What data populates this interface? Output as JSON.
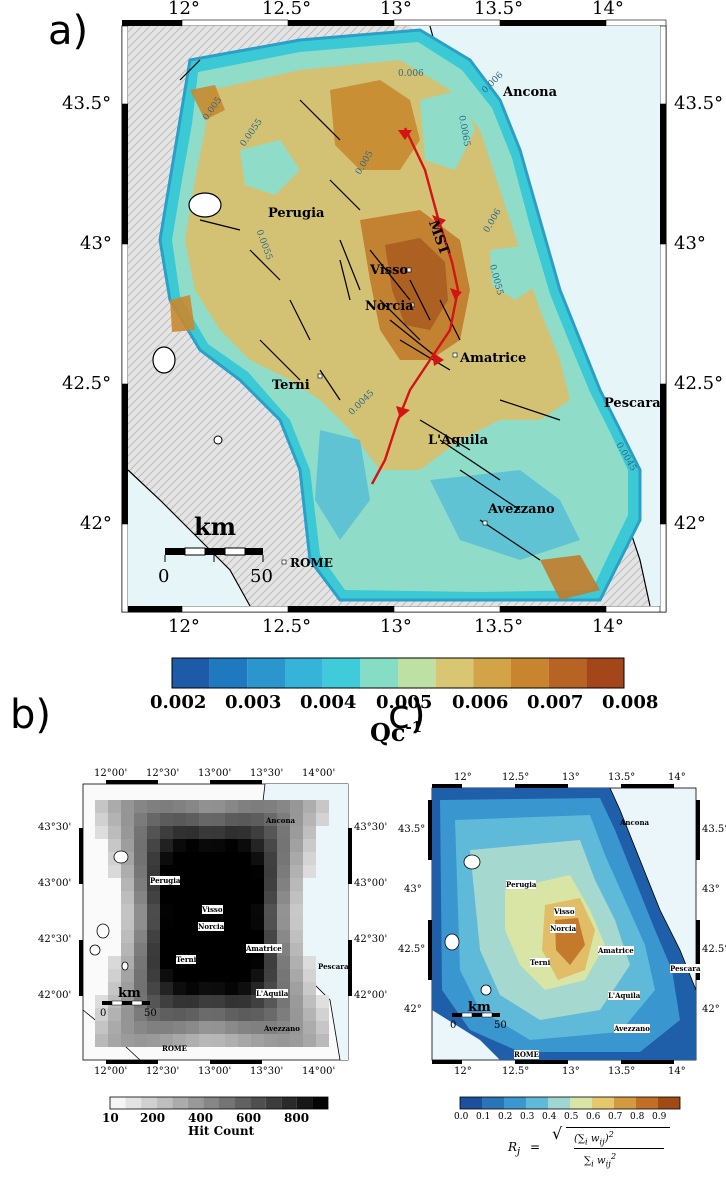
{
  "panel_a": {
    "label": "a)",
    "lon_ticks": [
      "12°",
      "12.5°",
      "13°",
      "13.5°",
      "14°"
    ],
    "lat_ticks": [
      "43.5°",
      "43°",
      "42.5°",
      "42°"
    ],
    "cities": {
      "ancona": "Ancona",
      "perugia": "Perugia",
      "visso": "Visso",
      "norcia": "Norcia",
      "amatrice": "Amatrice",
      "terni": "Terni",
      "pescara": "Pescara",
      "laquila": "L'Aquila",
      "avezzano": "Avezzano",
      "rome": "ROME"
    },
    "fault_label": "MST",
    "scale_unit": "km",
    "scale_min": "0",
    "scale_max": "50",
    "contour_labels": [
      "0.006",
      "0.005",
      "0.0055",
      "0.006",
      "0.005",
      "0.0065",
      "0.0055",
      "0.006",
      "0.0055",
      "0.0045",
      "0.0045"
    ],
    "colorbar": {
      "ticks": [
        "0.002",
        "0.003",
        "0.004",
        "0.005",
        "0.006",
        "0.007",
        "0.008"
      ],
      "title": "Qc",
      "title_sup": "-1",
      "colors": [
        "#1d5aa8",
        "#1f79bf",
        "#2a96cc",
        "#36b3d8",
        "#3fcbd9",
        "#86ddc6",
        "#bfe0a3",
        "#d8c672",
        "#d3a347",
        "#c8842f",
        "#b76323",
        "#a3461a"
      ]
    }
  },
  "panel_b": {
    "label": "b)",
    "lon_ticks": [
      "12°00'",
      "12°30'",
      "13°00'",
      "13°30'",
      "14°00'"
    ],
    "lat_ticks": [
      "43°30'",
      "43°00'",
      "42°30'",
      "42°00'"
    ],
    "cities": {
      "ancona": "Ancona",
      "perugia": "Perugia",
      "visso": "Visso",
      "norcia": "Norcia",
      "amatrice": "Amatrice",
      "terni": "Terni",
      "pescara": "Pescara",
      "laquila": "L'Aquila",
      "avezzano": "Avezzano",
      "rome": "ROME"
    },
    "scale_unit": "km",
    "scale_min": "0",
    "scale_max": "50",
    "colorbar": {
      "ticks": [
        "10",
        "200",
        "400",
        "600",
        "800"
      ],
      "title": "Hit Count"
    }
  },
  "panel_c": {
    "label": "c)",
    "lon_ticks": [
      "12°",
      "12.5°",
      "13°",
      "13.5°",
      "14°"
    ],
    "lat_ticks": [
      "43.5°",
      "43°",
      "42.5°",
      "42°"
    ],
    "cities": {
      "ancona": "Ancona",
      "perugia": "Perugia",
      "visso": "Visso",
      "norcia": "Norcia",
      "amatrice": "Amatrice",
      "terni": "Terni",
      "pescara": "Pescara",
      "laquila": "L'Aquila",
      "avezzano": "Avezzano",
      "rome": "ROME"
    },
    "scale_unit": "km",
    "scale_min": "0",
    "scale_max": "50",
    "colorbar": {
      "ticks": [
        "0.0",
        "0.1",
        "0.2",
        "0.3",
        "0.4",
        "0.5",
        "0.6",
        "0.7",
        "0.8",
        "0.9"
      ],
      "colors": [
        "#1c4f9c",
        "#2a74b8",
        "#3a98cf",
        "#5fb9d9",
        "#9fd6cf",
        "#d7e6a6",
        "#e5c86c",
        "#d49a40",
        "#c06f25",
        "#a04a15"
      ]
    },
    "formula": {
      "lhs": "R",
      "lhs_sub": "j",
      "eq": "=",
      "num": "(∑",
      "num_sub": "i",
      "num_w": " w",
      "num_wsub": "ij",
      "num_close": ")",
      "num_sup": "2",
      "den": "∑",
      "den_sub": "i",
      "den_w": " w",
      "den_wsub": "ij",
      "den_sup": "2"
    }
  }
}
